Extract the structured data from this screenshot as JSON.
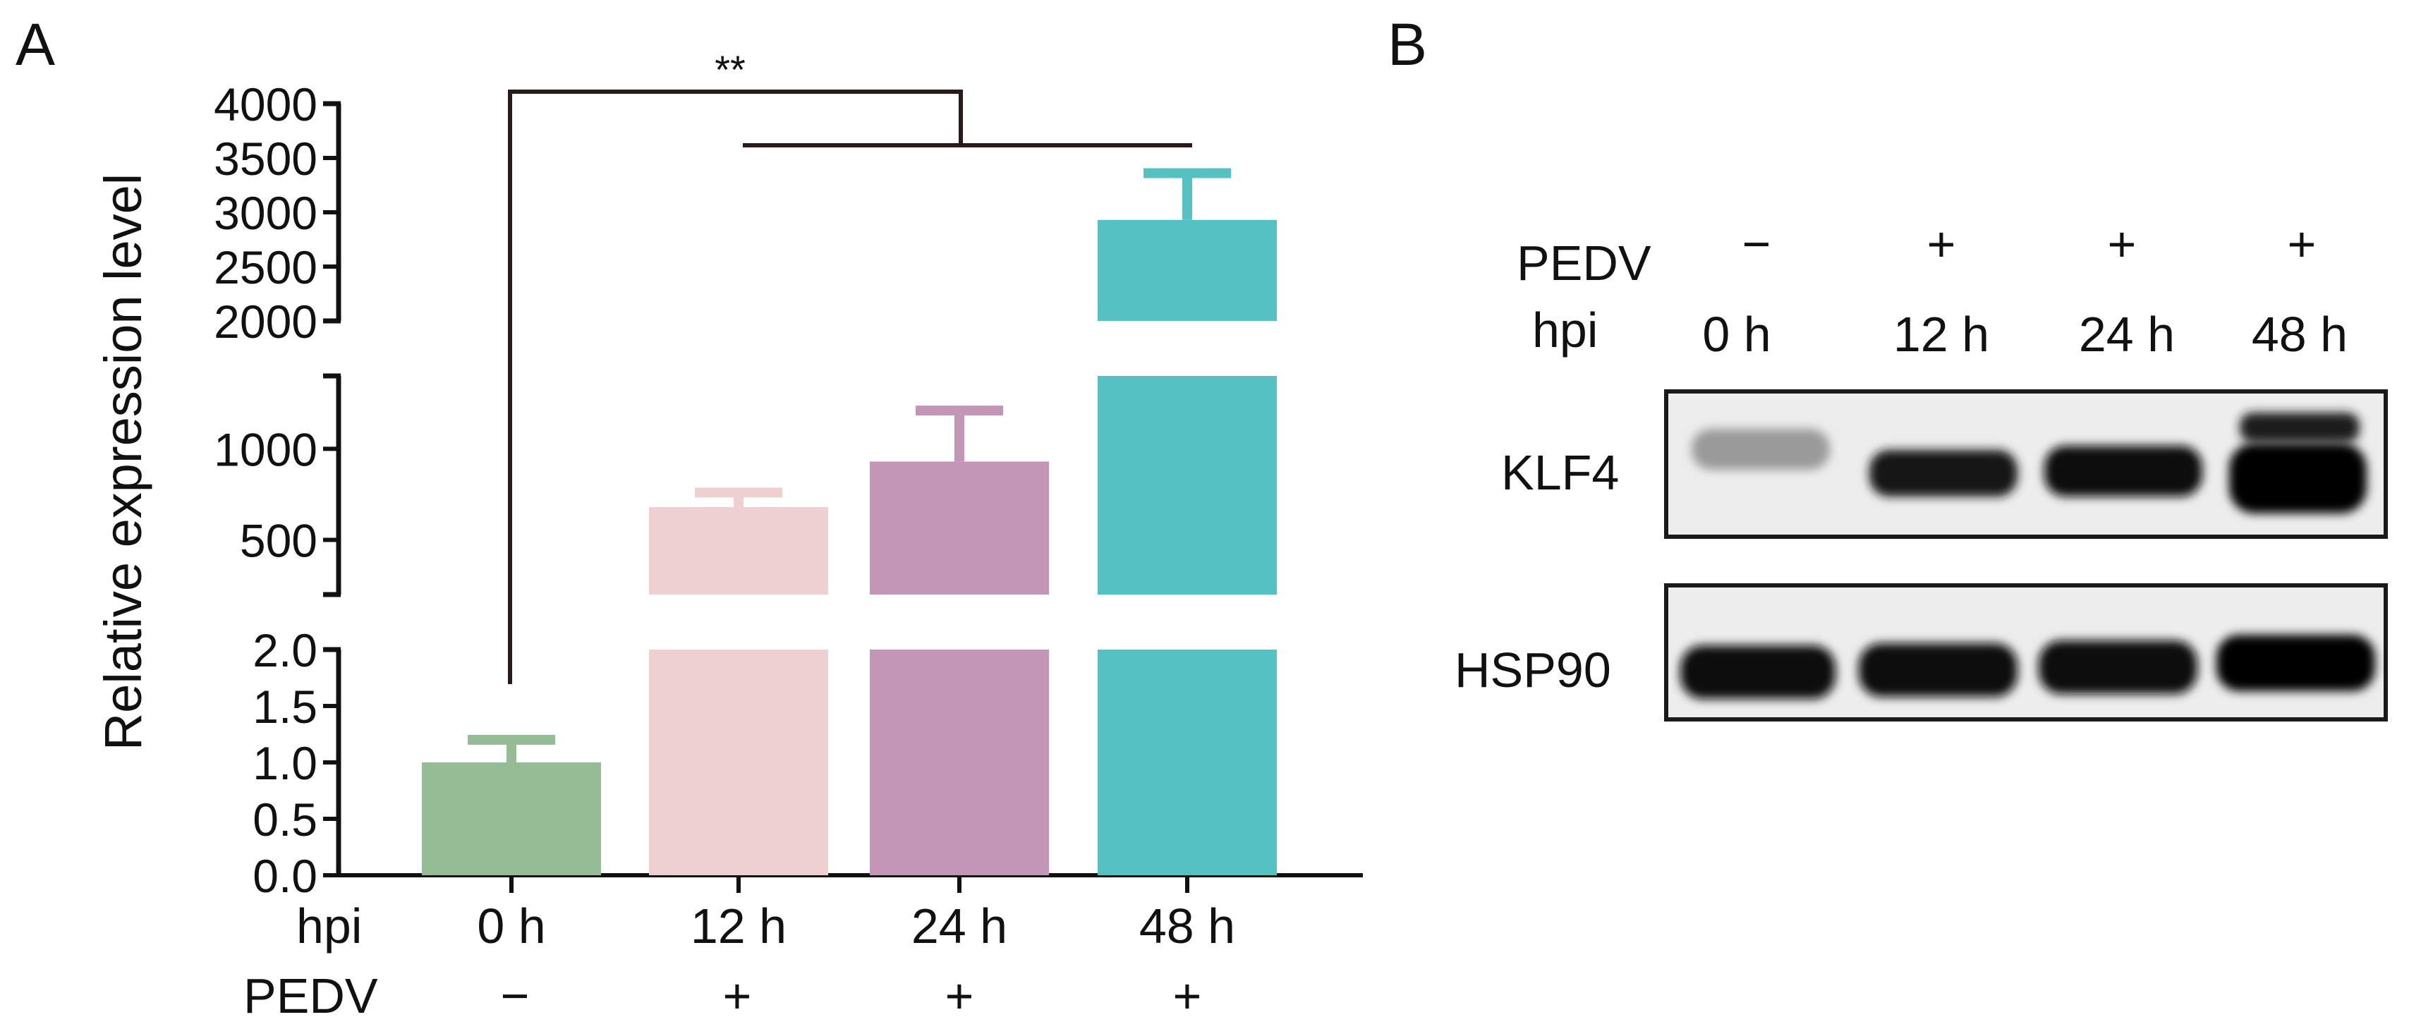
{
  "panels": {
    "a": {
      "label": "A"
    },
    "b": {
      "label": "B"
    }
  },
  "chart_data": {
    "type": "bar",
    "title": "",
    "ylabel": "Relative expression level",
    "categories": [
      "0 h",
      "12 h",
      "24 h",
      "48 h"
    ],
    "values": [
      1.0,
      680,
      930,
      2930
    ],
    "errors": [
      0.2,
      80,
      280,
      430
    ],
    "colors": [
      "#95bc95",
      "#efd0d0",
      "#c396b8",
      "#55c1c2"
    ],
    "axis_breaks": [
      {
        "range": [
          0,
          2.0
        ],
        "ticks": [
          0.0,
          0.5,
          1.0,
          1.5,
          2.0
        ],
        "tick_labels": [
          "0.0",
          "0.5",
          "1.0",
          "1.5",
          "2.0"
        ]
      },
      {
        "range": [
          200,
          1400
        ],
        "ticks": [
          500,
          1000
        ],
        "tick_labels": [
          "500",
          "1000"
        ]
      },
      {
        "range": [
          2000,
          4000
        ],
        "ticks": [
          2000,
          2500,
          3000,
          3500,
          4000
        ],
        "tick_labels": [
          "2000",
          "2500",
          "3000",
          "3500",
          "4000"
        ]
      }
    ],
    "x_rows": [
      {
        "label": "hpi",
        "values": [
          "0 h",
          "12 h",
          "24 h",
          "48 h"
        ]
      },
      {
        "label": "PEDV",
        "values": [
          "−",
          "+",
          "+",
          "+"
        ]
      }
    ],
    "significance": {
      "label": "**",
      "from": "0 h",
      "to": [
        "12 h",
        "48 h"
      ]
    }
  },
  "blot": {
    "header_rows": [
      {
        "label": "PEDV",
        "values": [
          "−",
          "+",
          "+",
          "+"
        ]
      },
      {
        "label": "hpi",
        "values": [
          "0 h",
          "12 h",
          "24 h",
          "48 h"
        ]
      }
    ],
    "proteins": [
      {
        "name": "KLF4",
        "relative_intensity": [
          0.3,
          0.85,
          0.9,
          1.0
        ]
      },
      {
        "name": "HSP90",
        "relative_intensity": [
          1.0,
          1.0,
          1.0,
          1.0
        ]
      }
    ]
  }
}
